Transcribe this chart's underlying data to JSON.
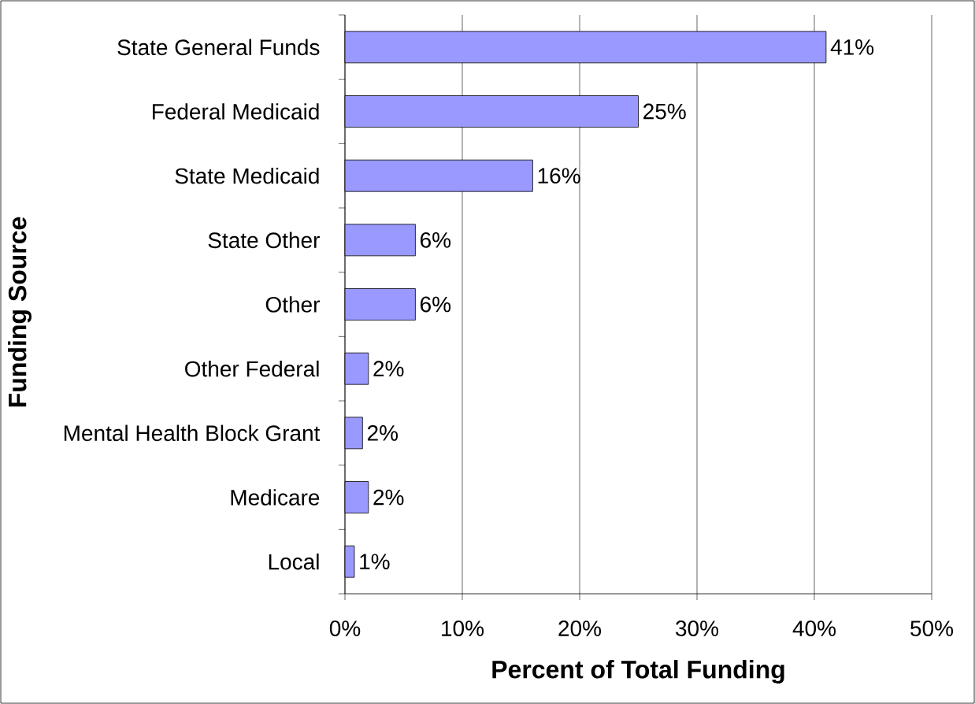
{
  "chart_data": {
    "type": "bar",
    "orientation": "horizontal",
    "xlabel": "Percent of Total Funding",
    "ylabel": "Funding Source",
    "categories": [
      "State General Funds",
      "Federal Medicaid",
      "State Medicaid",
      "State Other",
      "Other",
      "Other Federal",
      "Mental Health Block Grant",
      "Medicare",
      "Local"
    ],
    "values": [
      41,
      25,
      16,
      6,
      6,
      2,
      1.5,
      2,
      0.8
    ],
    "value_labels": [
      "41%",
      "25%",
      "16%",
      "6%",
      "6%",
      "2%",
      "2%",
      "2%",
      "1%"
    ],
    "color": "#9999ff",
    "xlim": [
      0,
      50
    ],
    "xticks": [
      {
        "value": 0,
        "label": "0%"
      },
      {
        "value": 10,
        "label": "10%"
      },
      {
        "value": 20,
        "label": "20%"
      },
      {
        "value": 30,
        "label": "30%"
      },
      {
        "value": 40,
        "label": "40%"
      },
      {
        "value": 50,
        "label": "50%"
      }
    ],
    "grid": "x"
  }
}
